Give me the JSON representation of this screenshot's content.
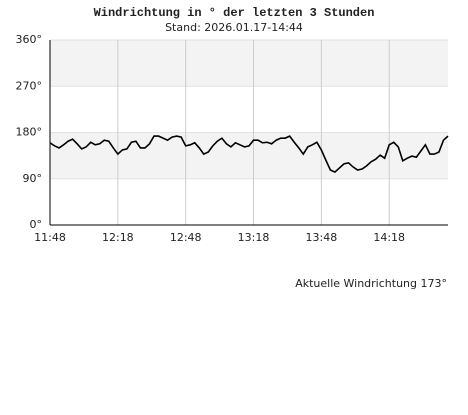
{
  "chart_data": {
    "type": "line",
    "title": "Windrichtung in ° der letzten 3 Stunden",
    "subtitle": "Stand: 2026.01.17-14:44",
    "annotation": "Aktuelle Windrichtung 173°",
    "x": [
      "11:48",
      "11:50",
      "11:52",
      "11:54",
      "11:56",
      "11:58",
      "12:00",
      "12:02",
      "12:04",
      "12:06",
      "12:08",
      "12:10",
      "12:12",
      "12:14",
      "12:16",
      "12:18",
      "12:20",
      "12:22",
      "12:24",
      "12:26",
      "12:28",
      "12:30",
      "12:32",
      "12:34",
      "12:36",
      "12:38",
      "12:40",
      "12:42",
      "12:44",
      "12:46",
      "12:48",
      "12:50",
      "12:52",
      "12:54",
      "12:56",
      "12:58",
      "13:00",
      "13:02",
      "13:04",
      "13:06",
      "13:08",
      "13:10",
      "13:12",
      "13:14",
      "13:16",
      "13:18",
      "13:20",
      "13:22",
      "13:24",
      "13:26",
      "13:28",
      "13:30",
      "13:32",
      "13:34",
      "13:36",
      "13:38",
      "13:40",
      "13:42",
      "13:44",
      "13:46",
      "13:48",
      "13:50",
      "13:52",
      "13:54",
      "13:56",
      "13:58",
      "14:00",
      "14:02",
      "14:04",
      "14:06",
      "14:08",
      "14:10",
      "14:12",
      "14:14",
      "14:16",
      "14:18",
      "14:20",
      "14:22",
      "14:24",
      "14:26",
      "14:28",
      "14:30",
      "14:32",
      "14:34",
      "14:36",
      "14:38",
      "14:40",
      "14:42",
      "14:44"
    ],
    "series": [
      {
        "name": "Windrichtung",
        "color": "#000000",
        "values": [
          160,
          154,
          150,
          156,
          163,
          167,
          158,
          148,
          152,
          161,
          156,
          158,
          165,
          163,
          150,
          138,
          146,
          148,
          161,
          163,
          150,
          150,
          158,
          173,
          173,
          169,
          165,
          171,
          173,
          171,
          154,
          156,
          160,
          150,
          138,
          142,
          154,
          163,
          169,
          158,
          152,
          160,
          156,
          152,
          154,
          165,
          165,
          160,
          161,
          158,
          165,
          169,
          169,
          173,
          161,
          150,
          138,
          152,
          156,
          161,
          146,
          126,
          107,
          103,
          111,
          119,
          121,
          113,
          107,
          109,
          115,
          123,
          128,
          136,
          130,
          156,
          161,
          152,
          125,
          130,
          134,
          132,
          144,
          156,
          138,
          138,
          142,
          165,
          173
        ]
      }
    ],
    "xlim": [
      "11:48",
      "14:44"
    ],
    "xticks": [
      "11:48",
      "12:18",
      "12:48",
      "13:18",
      "13:48",
      "14:18"
    ],
    "ylim": [
      0,
      360
    ],
    "yticks": [
      {
        "value": 0,
        "label": "0°"
      },
      {
        "value": 90,
        "label": "90°"
      },
      {
        "value": 180,
        "label": "180°"
      },
      {
        "value": 270,
        "label": "270°"
      },
      {
        "value": 360,
        "label": "360°"
      }
    ],
    "grid": true,
    "band_color": "#f3f3f3"
  }
}
